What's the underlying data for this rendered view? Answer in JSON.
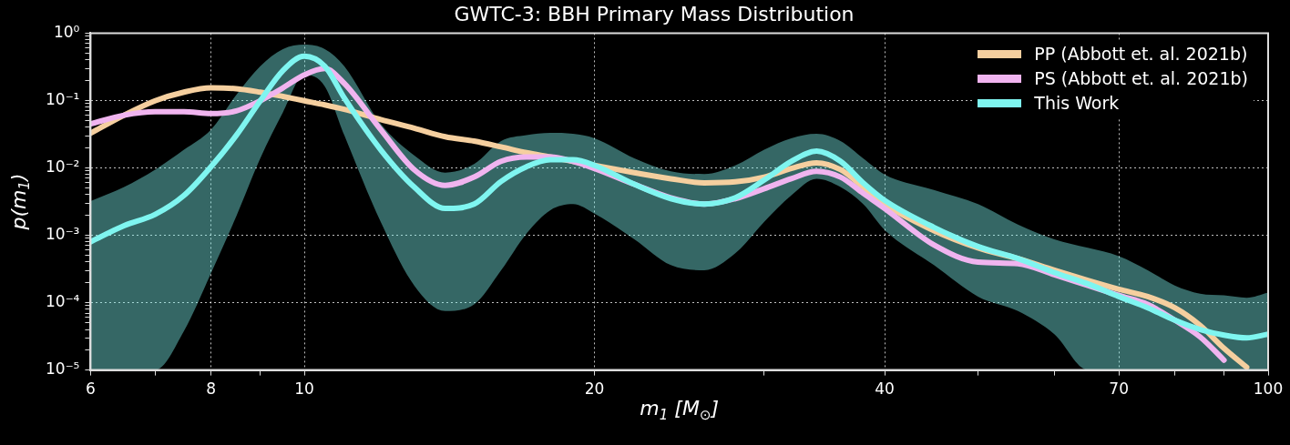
{
  "chart_data": {
    "type": "line",
    "title": "GWTC-3: BBH Primary Mass Distribution",
    "xlabel": "m$_{1}$ [M$_{⊙}$]",
    "ylabel": "p(m$_{1}$)",
    "x": [
      6,
      6.5,
      7,
      7.5,
      8,
      8.5,
      9,
      9.5,
      10,
      10.5,
      11,
      12,
      13,
      14,
      15,
      16,
      17,
      18,
      19,
      20,
      22,
      24,
      26,
      28,
      30,
      32,
      34,
      36,
      38,
      40,
      45,
      50,
      55,
      60,
      65,
      70,
      75,
      80,
      85,
      90,
      95,
      100
    ],
    "series": [
      {
        "name": "PP (Abbott et. al. 2021b)",
        "color": "#f5cf9f",
        "values": [
          0.0326,
          0.0605,
          0.099,
          0.133,
          0.154,
          0.15,
          0.133,
          0.115,
          0.099,
          0.086,
          0.0738,
          0.0522,
          0.0389,
          0.029,
          0.025,
          0.0205,
          0.0168,
          0.0145,
          0.0125,
          0.0109,
          0.0085,
          0.0069,
          0.006,
          0.0062,
          0.0073,
          0.0098,
          0.0119,
          0.0094,
          0.0052,
          0.0029,
          0.00117,
          0.00065,
          0.00045,
          0.000303,
          0.000214,
          0.000158,
          0.000123,
          8.4e-05,
          4.6e-05,
          2.1e-05,
          1.1e-05,
          null
        ]
      },
      {
        "name": "PS (Abbott et. al. 2021b)",
        "color": "#f0b4ef",
        "values": [
          0.045,
          0.0605,
          0.068,
          0.068,
          0.064,
          0.07,
          0.099,
          0.154,
          0.24,
          0.298,
          0.179,
          0.037,
          0.0094,
          0.0055,
          0.0073,
          0.0125,
          0.0145,
          0.0145,
          0.0125,
          0.0098,
          0.0057,
          0.0036,
          0.0029,
          0.0035,
          0.0049,
          0.0069,
          0.0089,
          0.0073,
          0.0042,
          0.0025,
          0.00072,
          0.0004,
          0.00038,
          0.00026,
          0.00018,
          0.000128,
          9.4e-05,
          5.5e-05,
          3.1e-05,
          1.4e-05,
          null,
          null
        ]
      },
      {
        "name": "This Work",
        "color": "#7ff5f0",
        "values": [
          0.0008,
          0.00139,
          0.00204,
          0.0039,
          0.0104,
          0.0305,
          0.099,
          0.278,
          0.455,
          0.323,
          0.109,
          0.0186,
          0.0052,
          0.0025,
          0.0029,
          0.0063,
          0.0104,
          0.0132,
          0.0132,
          0.0109,
          0.0057,
          0.0035,
          0.0029,
          0.0036,
          0.0066,
          0.0125,
          0.0177,
          0.0125,
          0.006,
          0.0033,
          0.00131,
          0.00068,
          0.00045,
          0.00028,
          0.00019,
          0.000123,
          8.4e-05,
          5.5e-05,
          4e-05,
          3.3e-05,
          3e-05,
          3.4e-05
        ],
        "upper": [
          0.0032,
          0.0052,
          0.0094,
          0.0186,
          0.037,
          0.121,
          0.323,
          0.58,
          0.675,
          0.58,
          0.323,
          0.045,
          0.0153,
          0.0085,
          0.0114,
          0.025,
          0.0305,
          0.033,
          0.032,
          0.0275,
          0.0139,
          0.0089,
          0.0081,
          0.0109,
          0.0186,
          0.0275,
          0.032,
          0.025,
          0.0139,
          0.008,
          0.0047,
          0.0029,
          0.00144,
          0.00087,
          0.00065,
          0.00049,
          0.000303,
          0.00018,
          0.000136,
          0.000128,
          0.000118,
          0.000141
        ],
        "lower": [
          1e-05,
          1e-05,
          1e-05,
          3.8e-05,
          0.000274,
          0.00192,
          0.0139,
          0.0667,
          0.24,
          0.162,
          0.0305,
          0.00158,
          0.00018,
          7.5e-05,
          9.4e-05,
          0.000303,
          0.00106,
          0.00236,
          0.0029,
          0.0021,
          0.00087,
          0.00036,
          0.000303,
          0.00054,
          0.00158,
          0.0039,
          0.0069,
          0.0052,
          0.0029,
          0.0012,
          0.00036,
          0.000123,
          7.5e-05,
          3.4e-05,
          1e-05,
          1e-05,
          1e-05,
          1e-05,
          1e-05,
          1e-05,
          1e-05,
          1e-05
        ]
      }
    ],
    "log": "xy",
    "xlim": [
      6,
      100
    ],
    "ylim": [
      1e-05,
      1
    ],
    "xticks": [
      6,
      {
        "value": 7,
        "label": null
      },
      8,
      {
        "value": 9,
        "label": null
      },
      10,
      20,
      {
        "value": 30,
        "label": null
      },
      40,
      {
        "value": 50,
        "label": null
      },
      {
        "value": 60,
        "label": null
      },
      70,
      {
        "value": 80,
        "label": null
      },
      {
        "value": 90,
        "label": null
      },
      100
    ],
    "yticks": [
      {
        "value": 1e-05,
        "label": "10⁻⁵"
      },
      {
        "value": 2e-05,
        "label": null
      },
      {
        "value": 3e-05,
        "label": null
      },
      {
        "value": 4e-05,
        "label": null
      },
      {
        "value": 5e-05,
        "label": null
      },
      {
        "value": 6e-05,
        "label": null
      },
      {
        "value": 7e-05,
        "label": null
      },
      {
        "value": 8e-05,
        "label": null
      },
      {
        "value": 9e-05,
        "label": null
      },
      {
        "value": 0.0001,
        "label": "10⁻⁴"
      },
      {
        "value": 0.0002,
        "label": null
      },
      {
        "value": 0.0003,
        "label": null
      },
      {
        "value": 0.0004,
        "label": null
      },
      {
        "value": 0.0005,
        "label": null
      },
      {
        "value": 0.0006,
        "label": null
      },
      {
        "value": 0.0007,
        "label": null
      },
      {
        "value": 0.0008,
        "label": null
      },
      {
        "value": 0.0009,
        "label": null
      },
      {
        "value": 0.001,
        "label": "10⁻³"
      },
      {
        "value": 0.002,
        "label": null
      },
      {
        "value": 0.003,
        "label": null
      },
      {
        "value": 0.004,
        "label": null
      },
      {
        "value": 0.005,
        "label": null
      },
      {
        "value": 0.006,
        "label": null
      },
      {
        "value": 0.007,
        "label": null
      },
      {
        "value": 0.008,
        "label": null
      },
      {
        "value": 0.009,
        "label": null
      },
      {
        "value": 0.01,
        "label": "10⁻²"
      },
      {
        "value": 0.02,
        "label": null
      },
      {
        "value": 0.03,
        "label": null
      },
      {
        "value": 0.04,
        "label": null
      },
      {
        "value": 0.05,
        "label": null
      },
      {
        "value": 0.06,
        "label": null
      },
      {
        "value": 0.07,
        "label": null
      },
      {
        "value": 0.08,
        "label": null
      },
      {
        "value": 0.09,
        "label": null
      },
      {
        "value": 0.1,
        "label": "10⁻¹"
      },
      {
        "value": 0.2,
        "label": null
      },
      {
        "value": 0.3,
        "label": null
      },
      {
        "value": 0.4,
        "label": null
      },
      {
        "value": 0.5,
        "label": null
      },
      {
        "value": 0.6,
        "label": null
      },
      {
        "value": 0.7,
        "label": null
      },
      {
        "value": 0.8,
        "label": null
      },
      {
        "value": 0.9,
        "label": null
      },
      {
        "value": 1,
        "label": "10⁰"
      }
    ],
    "grid": true,
    "legend": "top right",
    "marker": "none",
    "line_style": "solid"
  }
}
